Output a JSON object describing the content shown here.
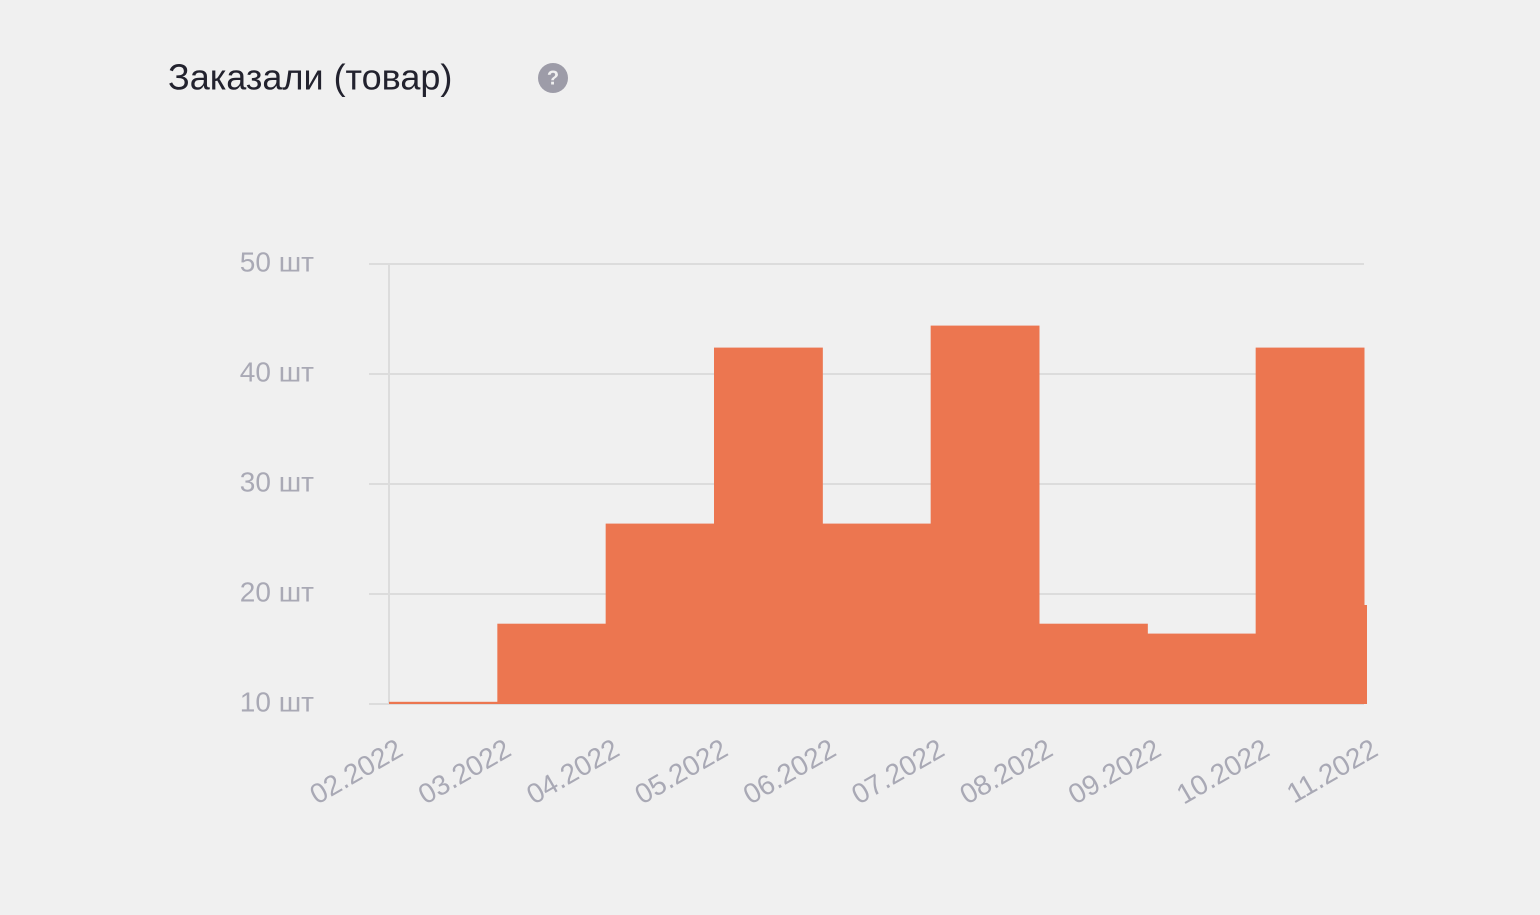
{
  "chart_data": {
    "type": "step-area",
    "title": "Заказали (товар)",
    "help_icon": "?",
    "categories": [
      "02.2022",
      "03.2022",
      "04.2022",
      "05.2022",
      "06.2022",
      "07.2022",
      "08.2022",
      "09.2022",
      "10.2022",
      "11.2022"
    ],
    "values": [
      10.2,
      17.3,
      26.4,
      42.4,
      26.4,
      44.4,
      17.3,
      16.4,
      42.4,
      19
    ],
    "color": "#ec7650",
    "ylim": [
      10,
      50
    ],
    "yticks": [
      {
        "value": 10,
        "label": "10 шт"
      },
      {
        "value": 20,
        "label": "20 шт"
      },
      {
        "value": 30,
        "label": "30 шт"
      },
      {
        "value": 40,
        "label": "40 шт"
      },
      {
        "value": 50,
        "label": "50 шт"
      }
    ],
    "grid": true
  }
}
